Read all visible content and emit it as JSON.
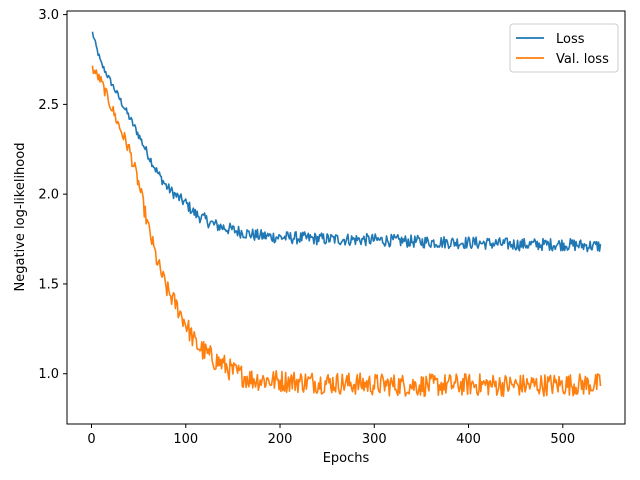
{
  "chart_data": {
    "type": "line",
    "title": "",
    "xlabel": "Epochs",
    "ylabel": "Negative log-likelihood",
    "xlim": [
      -26,
      566
    ],
    "ylim": [
      0.72,
      3.02
    ],
    "xticks": [
      0,
      100,
      200,
      300,
      400,
      500
    ],
    "yticks": [
      1.0,
      1.5,
      2.0,
      2.5,
      3.0
    ],
    "xtick_labels": [
      "0",
      "100",
      "200",
      "300",
      "400",
      "500"
    ],
    "ytick_labels": [
      "1.0",
      "1.5",
      "2.0",
      "2.5",
      "3.0"
    ],
    "grid": false,
    "legend_position": "top-right",
    "series": [
      {
        "name": "Loss",
        "color": "#1f77b4",
        "noise": 0.025,
        "x": [
          1,
          5,
          10,
          20,
          30,
          40,
          50,
          60,
          70,
          80,
          90,
          100,
          110,
          120,
          130,
          150,
          175,
          200,
          250,
          300,
          350,
          400,
          450,
          500,
          540
        ],
        "y": [
          2.9,
          2.82,
          2.73,
          2.63,
          2.53,
          2.43,
          2.33,
          2.22,
          2.12,
          2.04,
          1.99,
          1.95,
          1.89,
          1.86,
          1.83,
          1.8,
          1.77,
          1.76,
          1.75,
          1.745,
          1.735,
          1.73,
          1.72,
          1.72,
          1.71
        ]
      },
      {
        "name": "Val. loss",
        "color": "#ff7f0e",
        "noise": 0.045,
        "x": [
          1,
          10,
          20,
          30,
          40,
          50,
          60,
          70,
          80,
          90,
          100,
          110,
          120,
          130,
          140,
          150,
          160,
          170,
          200,
          250,
          300,
          350,
          400,
          450,
          500,
          540
        ],
        "y": [
          2.7,
          2.63,
          2.5,
          2.37,
          2.25,
          2.06,
          1.82,
          1.62,
          1.47,
          1.38,
          1.28,
          1.17,
          1.12,
          1.08,
          1.05,
          1.01,
          0.99,
          0.97,
          0.96,
          0.95,
          0.94,
          0.935,
          0.94,
          0.935,
          0.94,
          0.94
        ]
      }
    ]
  }
}
